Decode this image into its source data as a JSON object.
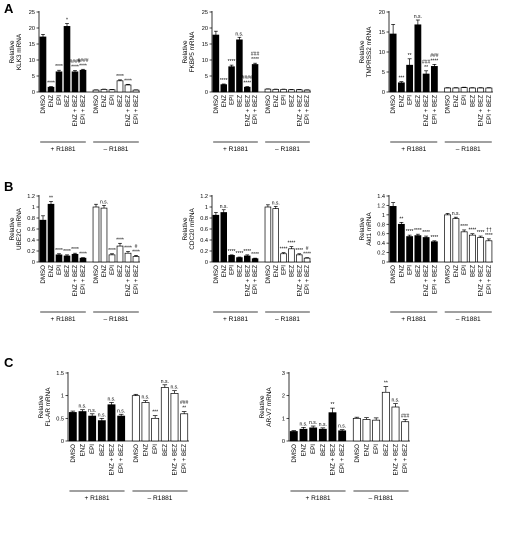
{
  "panel_labels": [
    "A",
    "B",
    "C"
  ],
  "categories": [
    "DMSO",
    "ENZ",
    "EPI",
    "BEZ",
    "ENZ + BEZ",
    "EPI + BEZ"
  ],
  "conditions": [
    "+ R1881",
    "– R1881"
  ],
  "chart_data": [
    {
      "id": "klk3",
      "panel": "A",
      "type": "bar",
      "ylabel": [
        "Relative",
        "KLK3 mRNA"
      ],
      "ylim": [
        0,
        25
      ],
      "yticks": [
        0,
        5,
        10,
        15,
        20,
        25
      ],
      "series": [
        {
          "condition": "+ R1881",
          "fill": "#000000",
          "values": [
            17.2,
            1.5,
            6.3,
            20.5,
            6.3,
            6.8
          ],
          "err": [
            0.8,
            0.2,
            0.5,
            0.9,
            0.4,
            0.3
          ],
          "sig": [
            [
              "",
              ""
            ],
            [
              "****"
            ],
            [
              "****"
            ],
            [
              "*"
            ],
            [
              "####",
              "****"
            ],
            [
              "####",
              "****"
            ]
          ]
        },
        {
          "condition": "– R1881",
          "fill": "#ffffff",
          "values": [
            0.6,
            0.8,
            0.7,
            3.5,
            2.2,
            0.6
          ],
          "err": [
            0.1,
            0.1,
            0.1,
            0.3,
            0.2,
            0.1
          ],
          "sig": [
            [
              ""
            ],
            [
              ""
            ],
            [
              ""
            ],
            [
              "****"
            ],
            [
              "****"
            ],
            [
              ""
            ]
          ]
        }
      ]
    },
    {
      "id": "fkbp5",
      "panel": "A",
      "type": "bar",
      "ylabel": [
        "Relative",
        "FKBP5 mRNA"
      ],
      "ylim": [
        0,
        25
      ],
      "yticks": [
        0,
        5,
        10,
        15,
        20,
        25
      ],
      "series": [
        {
          "condition": "+ R1881",
          "fill": "#000000",
          "values": [
            17.8,
            2.3,
            7.9,
            16.3,
            1.5,
            8.6
          ],
          "err": [
            1.2,
            0.2,
            0.5,
            0.8,
            0.2,
            0.4
          ],
          "sig": [
            [
              ""
            ],
            [
              "****"
            ],
            [
              "****"
            ],
            [
              "n.s."
            ],
            [
              "####",
              "****"
            ],
            [
              "###",
              "****"
            ]
          ]
        },
        {
          "condition": "– R1881",
          "fill": "#ffffff",
          "values": [
            0.9,
            0.8,
            0.8,
            0.7,
            0.7,
            0.6
          ],
          "err": [
            0.1,
            0.1,
            0.1,
            0.1,
            0.1,
            0.1
          ],
          "sig": [
            [
              ""
            ],
            [
              ""
            ],
            [
              ""
            ],
            [
              ""
            ],
            [
              ""
            ],
            [
              ""
            ]
          ]
        }
      ]
    },
    {
      "id": "tmprss2",
      "panel": "A",
      "type": "bar",
      "ylabel": [
        "Relative",
        "TMPRSS2 mRNA"
      ],
      "ylim": [
        0,
        20
      ],
      "yticks": [
        0,
        5,
        10,
        15,
        20
      ],
      "series": [
        {
          "condition": "+ R1881",
          "fill": "#000000",
          "values": [
            14.5,
            2.3,
            6.7,
            16.8,
            4.5,
            6.4
          ],
          "err": [
            2.4,
            0.3,
            1.6,
            1.2,
            0.8,
            0.5
          ],
          "sig": [
            [
              ""
            ],
            [
              "***"
            ],
            [
              "**"
            ],
            [
              "n.s."
            ],
            [
              "###",
              "**"
            ],
            [
              "###",
              "****"
            ]
          ]
        },
        {
          "condition": "– R1881",
          "fill": "#ffffff",
          "values": [
            1.0,
            1.0,
            1.1,
            1.0,
            1.0,
            1.0
          ],
          "err": [
            0.1,
            0.1,
            0.1,
            0.1,
            0.1,
            0.1
          ],
          "sig": [
            [
              ""
            ],
            [
              ""
            ],
            [
              ""
            ],
            [
              ""
            ],
            [
              ""
            ],
            [
              ""
            ]
          ]
        }
      ]
    },
    {
      "id": "ube2c",
      "panel": "B",
      "type": "bar",
      "ylabel": [
        "Relative",
        "UBE2C mRNA"
      ],
      "ylim": [
        0,
        1.2
      ],
      "yticks": [
        0,
        0.2,
        0.4,
        0.6,
        0.8,
        1.0,
        1.2
      ],
      "series": [
        {
          "condition": "+ R1881",
          "fill": "#000000",
          "values": [
            0.76,
            1.05,
            0.13,
            0.11,
            0.14,
            0.07
          ],
          "err": [
            0.08,
            0.05,
            0.02,
            0.02,
            0.02,
            0.01
          ],
          "sig": [
            [
              ""
            ],
            [
              "**"
            ],
            [
              "****"
            ],
            [
              "****"
            ],
            [
              "****"
            ],
            [
              "****"
            ]
          ]
        },
        {
          "condition": "– R1881",
          "fill": "#ffffff",
          "values": [
            1.0,
            0.98,
            0.13,
            0.29,
            0.16,
            0.1
          ],
          "err": [
            0.05,
            0.05,
            0.02,
            0.05,
            0.03,
            0.02
          ],
          "sig": [
            [
              ""
            ],
            [
              "n.s."
            ],
            [
              "****"
            ],
            [
              "****"
            ],
            [
              "****"
            ],
            [
              "#",
              "****"
            ]
          ]
        }
      ]
    },
    {
      "id": "cdc20",
      "panel": "B",
      "type": "bar",
      "ylabel": [
        "Relative",
        "CDC20 mRNA"
      ],
      "ylim": [
        0,
        1.2
      ],
      "yticks": [
        0,
        0.2,
        0.4,
        0.6,
        0.8,
        1.0,
        1.2
      ],
      "series": [
        {
          "condition": "+ R1881",
          "fill": "#000000",
          "values": [
            0.85,
            0.9,
            0.12,
            0.08,
            0.11,
            0.06
          ],
          "err": [
            0.05,
            0.05,
            0.01,
            0.01,
            0.02,
            0.01
          ],
          "sig": [
            [
              ""
            ],
            [
              "n.s."
            ],
            [
              "****"
            ],
            [
              "****"
            ],
            [
              "****"
            ],
            [
              "****"
            ]
          ]
        },
        {
          "condition": "– R1881",
          "fill": "#ffffff",
          "values": [
            1.0,
            0.97,
            0.15,
            0.24,
            0.13,
            0.07
          ],
          "err": [
            0.04,
            0.04,
            0.02,
            0.04,
            0.02,
            0.01
          ],
          "sig": [
            [
              ""
            ],
            [
              "n.s."
            ],
            [
              "****"
            ],
            [
              "****"
            ],
            [
              "****"
            ],
            [
              "#",
              "****"
            ]
          ]
        }
      ]
    },
    {
      "id": "akt1",
      "panel": "B",
      "type": "bar",
      "ylabel": [
        "Relative",
        "Akt1 mRNA"
      ],
      "ylim": [
        0,
        1.4
      ],
      "yticks": [
        0,
        0.2,
        0.4,
        0.6,
        0.8,
        1.0,
        1.2,
        1.4
      ],
      "series": [
        {
          "condition": "+ R1881",
          "fill": "#000000",
          "values": [
            1.18,
            0.8,
            0.54,
            0.56,
            0.52,
            0.43
          ],
          "err": [
            0.08,
            0.04,
            0.03,
            0.03,
            0.03,
            0.02
          ],
          "sig": [
            [
              ""
            ],
            [
              "**"
            ],
            [
              "****"
            ],
            [
              "****"
            ],
            [
              "****"
            ],
            [
              "****"
            ]
          ]
        },
        {
          "condition": "– R1881",
          "fill": "#ffffff",
          "values": [
            1.0,
            0.92,
            0.64,
            0.57,
            0.52,
            0.45
          ],
          "err": [
            0.03,
            0.03,
            0.04,
            0.03,
            0.03,
            0.04
          ],
          "sig": [
            [
              ""
            ],
            [
              "n.s."
            ],
            [
              "****"
            ],
            [
              "****"
            ],
            [
              "****"
            ],
            [
              "††",
              "****"
            ]
          ]
        }
      ]
    },
    {
      "id": "flar",
      "panel": "C",
      "type": "bar",
      "ylabel": [
        "Relative",
        "FL-AR mRNA"
      ],
      "ylim": [
        0,
        1.5
      ],
      "yticks": [
        0,
        0.5,
        1.0,
        1.5
      ],
      "series": [
        {
          "condition": "+ R1881",
          "fill": "#000000",
          "values": [
            0.63,
            0.65,
            0.55,
            0.45,
            0.8,
            0.55
          ],
          "err": [
            0.03,
            0.04,
            0.05,
            0.05,
            0.05,
            0.04
          ],
          "sig": [
            [
              ""
            ],
            [
              "n.s."
            ],
            [
              "n.s."
            ],
            [
              "n.s."
            ],
            [
              "n.s."
            ],
            [
              "n.s."
            ]
          ]
        },
        {
          "condition": "– R1881",
          "fill": "#ffffff",
          "values": [
            1.0,
            0.85,
            0.5,
            1.18,
            1.05,
            0.6
          ],
          "err": [
            0.03,
            0.04,
            0.06,
            0.06,
            0.06,
            0.05
          ],
          "sig": [
            [
              ""
            ],
            [
              "n.s."
            ],
            [
              "***"
            ],
            [
              "n.s."
            ],
            [
              "n.s."
            ],
            [
              "###",
              "**"
            ]
          ]
        }
      ]
    },
    {
      "id": "arv7",
      "panel": "C",
      "type": "bar",
      "ylabel": [
        "Relative",
        "AR-V7 mRNA"
      ],
      "ylim": [
        0,
        3
      ],
      "yticks": [
        0,
        1,
        2,
        3
      ],
      "series": [
        {
          "condition": "+ R1881",
          "fill": "#000000",
          "values": [
            0.42,
            0.52,
            0.58,
            0.52,
            1.25,
            0.45
          ],
          "err": [
            0.04,
            0.08,
            0.08,
            0.06,
            0.2,
            0.05
          ],
          "sig": [
            [
              ""
            ],
            [
              "n.s."
            ],
            [
              "n.s."
            ],
            [
              "n.s."
            ],
            [
              "**"
            ],
            [
              "n.s."
            ]
          ]
        },
        {
          "condition": "– R1881",
          "fill": "#ffffff",
          "values": [
            1.0,
            0.95,
            0.92,
            2.15,
            1.5,
            0.85
          ],
          "err": [
            0.05,
            0.08,
            0.1,
            0.25,
            0.15,
            0.1
          ],
          "sig": [
            [
              ""
            ],
            [
              ""
            ],
            [
              ""
            ],
            [
              "**"
            ],
            [
              "n.s."
            ],
            [
              "###"
            ]
          ]
        }
      ]
    }
  ]
}
